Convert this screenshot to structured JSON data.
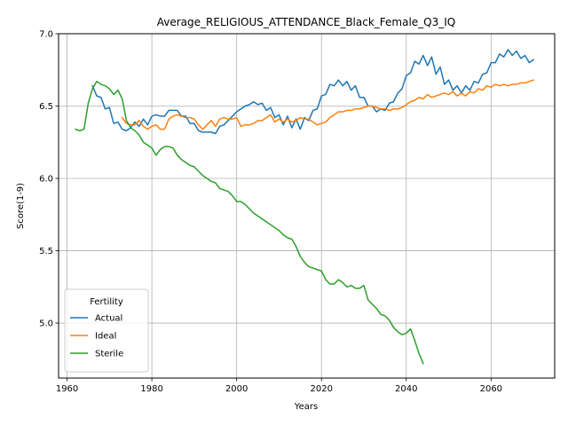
{
  "chart_data": {
    "type": "line",
    "title": "Average_RELIGIOUS_ATTENDANCE_Black_Female_Q3_IQ",
    "xlabel": "Years",
    "ylabel": "Score(1-9)",
    "xlim": [
      1958,
      2075
    ],
    "ylim": [
      4.62,
      7.0
    ],
    "xticks": [
      1960,
      1980,
      2000,
      2020,
      2040,
      2060
    ],
    "yticks": [
      5.0,
      5.5,
      6.0,
      6.5,
      7.0
    ],
    "xtick_labels": [
      "1960",
      "1980",
      "2000",
      "2020",
      "2040",
      "2060"
    ],
    "ytick_labels": [
      "5.0",
      "5.5",
      "6.0",
      "6.5",
      "7.0"
    ],
    "grid": true,
    "legend": {
      "title": "Fertility",
      "position": "lower-left"
    },
    "series": [
      {
        "name": "Actual",
        "color": "#1f77b4",
        "x": [
          1966,
          1967,
          1968,
          1969,
          1970,
          1971,
          1972,
          1973,
          1974,
          1975,
          1976,
          1977,
          1978,
          1979,
          1980,
          1981,
          1982,
          1983,
          1984,
          1985,
          1986,
          1987,
          1988,
          1989,
          1990,
          1991,
          1992,
          1993,
          1994,
          1995,
          1996,
          1997,
          1998,
          1999,
          2000,
          2001,
          2002,
          2003,
          2004,
          2005,
          2006,
          2007,
          2008,
          2009,
          2010,
          2011,
          2012,
          2013,
          2014,
          2015,
          2016,
          2017,
          2018,
          2019,
          2020,
          2021,
          2022,
          2023,
          2024,
          2025,
          2026,
          2027,
          2028,
          2029,
          2030,
          2031,
          2032,
          2033,
          2034,
          2035,
          2036,
          2037,
          2038,
          2039,
          2040,
          2041,
          2042,
          2043,
          2044,
          2045,
          2046,
          2047,
          2048,
          2049,
          2050,
          2051,
          2052,
          2053,
          2054,
          2055,
          2056,
          2057,
          2058,
          2059,
          2060,
          2061,
          2062,
          2063,
          2064,
          2065,
          2066,
          2067,
          2068,
          2069,
          2070
        ],
        "values": [
          6.64,
          6.57,
          6.56,
          6.48,
          6.49,
          6.38,
          6.39,
          6.34,
          6.33,
          6.35,
          6.39,
          6.36,
          6.41,
          6.37,
          6.43,
          6.44,
          6.43,
          6.43,
          6.47,
          6.47,
          6.47,
          6.43,
          6.43,
          6.38,
          6.38,
          6.33,
          6.32,
          6.32,
          6.32,
          6.31,
          6.36,
          6.37,
          6.4,
          6.43,
          6.46,
          6.48,
          6.5,
          6.51,
          6.53,
          6.51,
          6.52,
          6.47,
          6.49,
          6.42,
          6.44,
          6.37,
          6.43,
          6.35,
          6.41,
          6.34,
          6.42,
          6.4,
          6.47,
          6.48,
          6.57,
          6.58,
          6.65,
          6.64,
          6.68,
          6.64,
          6.67,
          6.61,
          6.64,
          6.56,
          6.56,
          6.5,
          6.5,
          6.46,
          6.48,
          6.47,
          6.52,
          6.53,
          6.59,
          6.62,
          6.71,
          6.73,
          6.81,
          6.79,
          6.85,
          6.78,
          6.84,
          6.72,
          6.77,
          6.65,
          6.68,
          6.61,
          6.64,
          6.59,
          6.64,
          6.61,
          6.67,
          6.66,
          6.72,
          6.73,
          6.8,
          6.8,
          6.86,
          6.84,
          6.89,
          6.85,
          6.88,
          6.83,
          6.85,
          6.8,
          6.82
        ]
      },
      {
        "name": "Ideal",
        "color": "#ff7f0e",
        "x": [
          1973,
          1974,
          1975,
          1976,
          1977,
          1978,
          1979,
          1980,
          1981,
          1982,
          1983,
          1984,
          1985,
          1986,
          1987,
          1988,
          1989,
          1990,
          1991,
          1992,
          1993,
          1994,
          1995,
          1996,
          1997,
          1998,
          1999,
          2000,
          2001,
          2002,
          2003,
          2004,
          2005,
          2006,
          2007,
          2008,
          2009,
          2010,
          2011,
          2012,
          2013,
          2014,
          2015,
          2016,
          2017,
          2018,
          2019,
          2020,
          2021,
          2022,
          2023,
          2024,
          2025,
          2026,
          2027,
          2028,
          2029,
          2030,
          2031,
          2032,
          2033,
          2034,
          2035,
          2036,
          2037,
          2038,
          2039,
          2040,
          2041,
          2042,
          2043,
          2044,
          2045,
          2046,
          2047,
          2048,
          2049,
          2050,
          2051,
          2052,
          2053,
          2054,
          2055,
          2056,
          2057,
          2058,
          2059,
          2060,
          2061,
          2062,
          2063,
          2064,
          2065,
          2066,
          2067,
          2068,
          2069,
          2070
        ],
        "values": [
          6.42,
          6.38,
          6.37,
          6.37,
          6.4,
          6.36,
          6.34,
          6.36,
          6.37,
          6.34,
          6.34,
          6.41,
          6.43,
          6.44,
          6.43,
          6.42,
          6.42,
          6.41,
          6.37,
          6.34,
          6.37,
          6.4,
          6.36,
          6.41,
          6.42,
          6.41,
          6.41,
          6.42,
          6.36,
          6.37,
          6.37,
          6.38,
          6.4,
          6.4,
          6.42,
          6.44,
          6.39,
          6.41,
          6.39,
          6.41,
          6.39,
          6.4,
          6.42,
          6.41,
          6.41,
          6.39,
          6.37,
          6.38,
          6.39,
          6.42,
          6.44,
          6.46,
          6.46,
          6.47,
          6.47,
          6.48,
          6.48,
          6.49,
          6.5,
          6.5,
          6.49,
          6.48,
          6.48,
          6.47,
          6.48,
          6.48,
          6.49,
          6.51,
          6.53,
          6.54,
          6.56,
          6.55,
          6.58,
          6.56,
          6.57,
          6.58,
          6.59,
          6.58,
          6.6,
          6.57,
          6.59,
          6.57,
          6.6,
          6.59,
          6.62,
          6.61,
          6.64,
          6.63,
          6.65,
          6.64,
          6.65,
          6.64,
          6.65,
          6.65,
          6.66,
          6.66,
          6.67,
          6.68
        ]
      },
      {
        "name": "Sterile",
        "color": "#2ca02c",
        "x": [
          1962,
          1963,
          1964,
          1965,
          1966,
          1967,
          1968,
          1969,
          1970,
          1971,
          1972,
          1973,
          1974,
          1975,
          1976,
          1977,
          1978,
          1979,
          1980,
          1981,
          1982,
          1983,
          1984,
          1985,
          1986,
          1987,
          1988,
          1989,
          1990,
          1991,
          1992,
          1993,
          1994,
          1995,
          1996,
          1997,
          1998,
          1999,
          2000,
          2001,
          2002,
          2003,
          2004,
          2005,
          2006,
          2007,
          2008,
          2009,
          2010,
          2011,
          2012,
          2013,
          2014,
          2015,
          2016,
          2017,
          2018,
          2019,
          2020,
          2021,
          2022,
          2023,
          2024,
          2025,
          2026,
          2027,
          2028,
          2029,
          2030,
          2031,
          2032,
          2033,
          2034,
          2035,
          2036,
          2037,
          2038,
          2039,
          2040,
          2041,
          2042,
          2043,
          2044
        ],
        "values": [
          6.34,
          6.33,
          6.34,
          6.52,
          6.62,
          6.67,
          6.65,
          6.64,
          6.62,
          6.58,
          6.61,
          6.55,
          6.4,
          6.35,
          6.33,
          6.3,
          6.25,
          6.23,
          6.21,
          6.16,
          6.2,
          6.22,
          6.22,
          6.21,
          6.16,
          6.13,
          6.11,
          6.09,
          6.08,
          6.05,
          6.02,
          6.0,
          5.98,
          5.97,
          5.93,
          5.92,
          5.91,
          5.88,
          5.84,
          5.84,
          5.82,
          5.79,
          5.76,
          5.74,
          5.72,
          5.7,
          5.68,
          5.66,
          5.64,
          5.61,
          5.59,
          5.58,
          5.53,
          5.46,
          5.42,
          5.39,
          5.38,
          5.37,
          5.36,
          5.3,
          5.27,
          5.27,
          5.3,
          5.28,
          5.25,
          5.26,
          5.24,
          5.24,
          5.26,
          5.16,
          5.13,
          5.1,
          5.06,
          5.05,
          5.02,
          4.97,
          4.94,
          4.92,
          4.93,
          4.96,
          4.88,
          4.79,
          4.72
        ]
      }
    ]
  }
}
